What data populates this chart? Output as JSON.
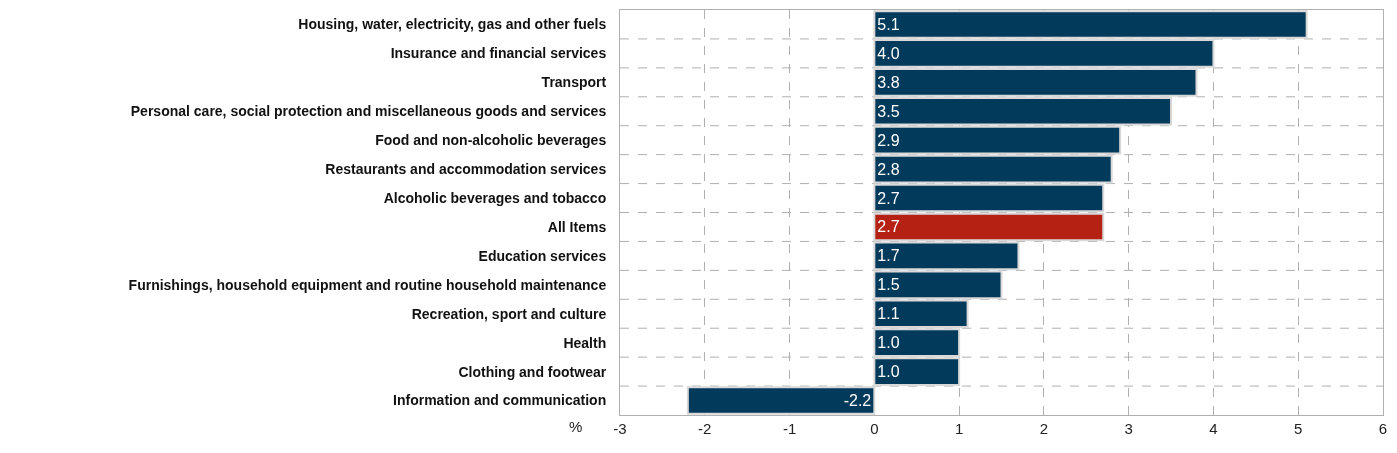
{
  "chart_data": {
    "type": "bar",
    "orientation": "horizontal",
    "xlabel": "%",
    "categories": [
      "Housing, water, electricity, gas and other fuels",
      "Insurance and financial services",
      "Transport",
      "Personal care, social protection and miscellaneous goods and services",
      "Food and non-alcoholic beverages",
      "Restaurants and accommodation services",
      "Alcoholic beverages and tobacco",
      "All Items",
      "Education services",
      "Furnishings, household equipment and routine household maintenance",
      "Recreation, sport and culture",
      "Health",
      "Clothing and footwear",
      "Information and communication"
    ],
    "values": [
      5.1,
      4.0,
      3.8,
      3.5,
      2.9,
      2.8,
      2.7,
      2.7,
      1.7,
      1.5,
      1.1,
      1.0,
      1.0,
      -2.2
    ],
    "value_labels": [
      "5.1",
      "4.0",
      "3.8",
      "3.5",
      "2.9",
      "2.8",
      "2.7",
      "2.7",
      "1.7",
      "1.5",
      "1.1",
      "1.0",
      "1.0",
      "-2.2"
    ],
    "colors": [
      "#023a5b",
      "#023a5b",
      "#023a5b",
      "#023a5b",
      "#023a5b",
      "#023a5b",
      "#023a5b",
      "#b52213",
      "#023a5b",
      "#023a5b",
      "#023a5b",
      "#023a5b",
      "#023a5b",
      "#023a5b"
    ],
    "xlim": [
      -3,
      6
    ],
    "xticks": [
      -3,
      -2,
      -1,
      0,
      1,
      2,
      3,
      4,
      5,
      6
    ],
    "grid": true,
    "legend": false
  }
}
